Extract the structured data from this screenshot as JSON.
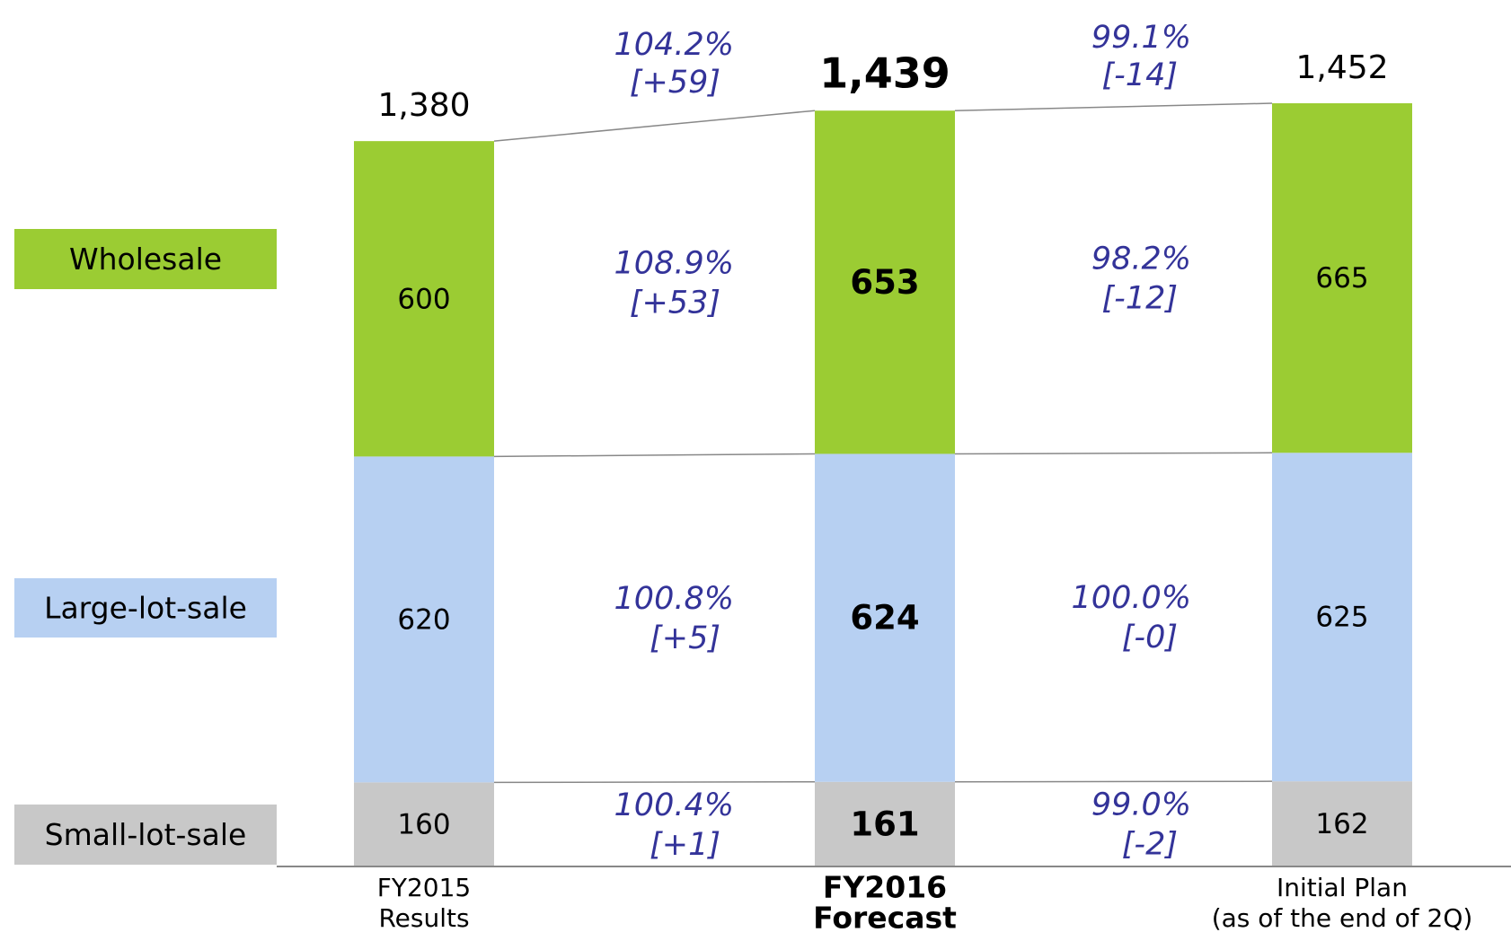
{
  "chart_data": {
    "type": "stacked_bar",
    "categories": [
      [
        "FY2015",
        "Results"
      ],
      [
        "FY2016",
        "Forecast"
      ],
      [
        "Initial Plan",
        "(as of the end of 2Q)"
      ]
    ],
    "highlight_category": 1,
    "series": [
      {
        "name": "Small-lot-sale",
        "color": "#c8c8c8",
        "values": [
          160,
          161,
          162
        ]
      },
      {
        "name": "Large-lot-sale",
        "color": "#b7d0f2",
        "values": [
          620,
          624,
          625
        ]
      },
      {
        "name": "Wholesale",
        "color": "#9bcc33",
        "values": [
          600,
          653,
          665
        ]
      }
    ],
    "totals": [
      1380,
      1439,
      1452
    ],
    "total_labels": [
      "1,380",
      "1,439",
      "1,452"
    ],
    "changes": [
      [
        [
          "100.4%",
          "[+1]"
        ],
        [
          "99.0%",
          "[-2]"
        ]
      ],
      [
        [
          "100.8%",
          "[+5]"
        ],
        [
          "100.0%",
          "[-0]"
        ]
      ],
      [
        [
          "108.9%",
          "[+53]"
        ],
        [
          "98.2%",
          "[-12]"
        ]
      ]
    ],
    "total_changes": [
      [
        "104.2%",
        "[+59]"
      ],
      [
        "99.1%",
        "[-14]"
      ]
    ]
  }
}
